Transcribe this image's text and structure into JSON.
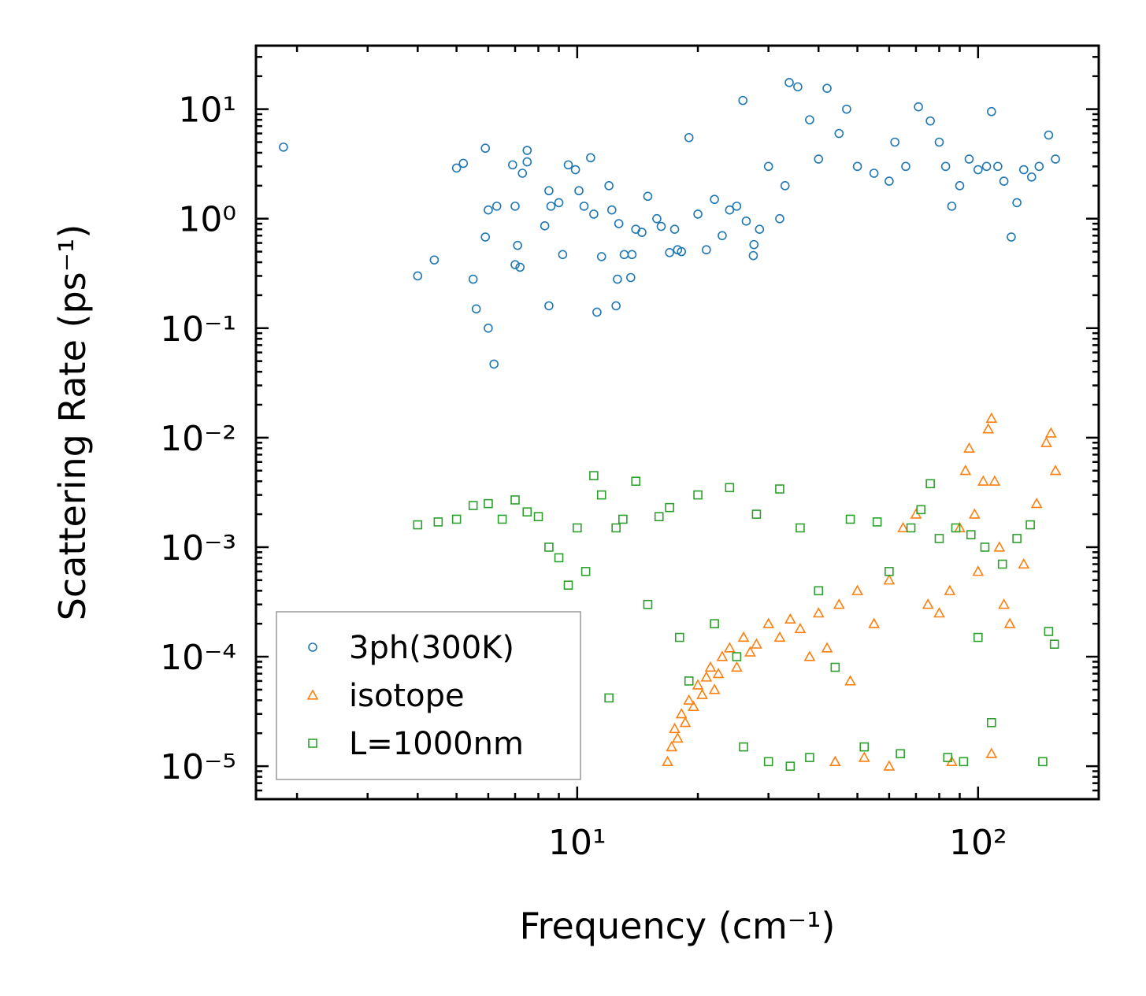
{
  "chart_data": {
    "type": "scatter",
    "title": "",
    "xlabel": "Frequency (cm⁻¹)",
    "ylabel": "Scattering Rate (ps⁻¹)",
    "xscale": "log",
    "yscale": "log",
    "xlim": [
      1.58,
      200
    ],
    "ylim": [
      5e-06,
      38
    ],
    "x_tick_labels": [
      {
        "value": 10,
        "label": "10¹"
      },
      {
        "value": 100,
        "label": "10²"
      }
    ],
    "y_tick_labels": [
      {
        "value": 10,
        "label": "10¹"
      },
      {
        "value": 1,
        "label": "10⁰"
      },
      {
        "value": 0.1,
        "label": "10⁻¹"
      },
      {
        "value": 0.01,
        "label": "10⁻²"
      },
      {
        "value": 0.001,
        "label": "10⁻³"
      },
      {
        "value": 0.0001,
        "label": "10⁻⁴"
      },
      {
        "value": 1e-05,
        "label": "10⁻⁵"
      }
    ],
    "legend_position": "lower-left",
    "series": [
      {
        "name": "3ph(300K)",
        "marker": "circle",
        "color": "#1f77b4",
        "points": [
          [
            1.85,
            4.5
          ],
          [
            4.0,
            0.3
          ],
          [
            4.4,
            0.42
          ],
          [
            5.0,
            2.9
          ],
          [
            5.2,
            3.2
          ],
          [
            5.5,
            0.28
          ],
          [
            5.6,
            0.15
          ],
          [
            5.9,
            0.68
          ],
          [
            5.9,
            4.4
          ],
          [
            6.0,
            0.1
          ],
          [
            6.0,
            1.2
          ],
          [
            6.2,
            0.047
          ],
          [
            6.3,
            1.3
          ],
          [
            6.9,
            3.1
          ],
          [
            7.0,
            1.3
          ],
          [
            7.0,
            0.38
          ],
          [
            7.1,
            0.57
          ],
          [
            7.2,
            0.36
          ],
          [
            7.3,
            2.6
          ],
          [
            7.5,
            4.2
          ],
          [
            7.5,
            3.3
          ],
          [
            8.3,
            0.86
          ],
          [
            8.5,
            0.16
          ],
          [
            8.5,
            1.8
          ],
          [
            8.6,
            1.3
          ],
          [
            9.0,
            1.4
          ],
          [
            9.2,
            0.47
          ],
          [
            9.5,
            3.1
          ],
          [
            9.9,
            2.8
          ],
          [
            10.1,
            1.8
          ],
          [
            10.4,
            1.3
          ],
          [
            10.8,
            3.6
          ],
          [
            11.0,
            1.1
          ],
          [
            11.2,
            0.14
          ],
          [
            11.5,
            0.45
          ],
          [
            12.0,
            2.0
          ],
          [
            12.2,
            1.2
          ],
          [
            12.5,
            0.16
          ],
          [
            12.6,
            0.28
          ],
          [
            12.7,
            0.9
          ],
          [
            13.1,
            0.47
          ],
          [
            13.6,
            0.29
          ],
          [
            13.7,
            0.47
          ],
          [
            14.0,
            0.8
          ],
          [
            14.5,
            0.75
          ],
          [
            15.0,
            1.6
          ],
          [
            15.8,
            1.0
          ],
          [
            16.2,
            0.85
          ],
          [
            17.0,
            0.49
          ],
          [
            17.5,
            0.8
          ],
          [
            17.8,
            0.52
          ],
          [
            18.2,
            0.5
          ],
          [
            19.0,
            5.5
          ],
          [
            20.0,
            1.1
          ],
          [
            21.0,
            0.52
          ],
          [
            22.0,
            1.5
          ],
          [
            23.0,
            0.7
          ],
          [
            24.0,
            1.2
          ],
          [
            25.0,
            1.3
          ],
          [
            25.9,
            12.0
          ],
          [
            26.4,
            0.95
          ],
          [
            27.5,
            0.46
          ],
          [
            27.6,
            0.58
          ],
          [
            28.5,
            0.8
          ],
          [
            30.0,
            3.0
          ],
          [
            32.0,
            1.0
          ],
          [
            33.0,
            2.0
          ],
          [
            33.8,
            17.5
          ],
          [
            35.5,
            16.0
          ],
          [
            38.0,
            8.0
          ],
          [
            40.0,
            3.5
          ],
          [
            42.0,
            15.5
          ],
          [
            45.0,
            6.0
          ],
          [
            47.0,
            10.0
          ],
          [
            50.0,
            3.0
          ],
          [
            55.0,
            2.6
          ],
          [
            60.0,
            2.2
          ],
          [
            62.0,
            5.0
          ],
          [
            66.0,
            3.0
          ],
          [
            71.0,
            10.5
          ],
          [
            76.0,
            7.8
          ],
          [
            80.0,
            5.0
          ],
          [
            83.0,
            3.0
          ],
          [
            86.0,
            1.3
          ],
          [
            90.0,
            2.0
          ],
          [
            95.0,
            3.5
          ],
          [
            100.0,
            2.8
          ],
          [
            105.0,
            3.0
          ],
          [
            108.0,
            9.5
          ],
          [
            112.0,
            3.0
          ],
          [
            116.0,
            2.2
          ],
          [
            121.0,
            0.68
          ],
          [
            125.0,
            1.4
          ],
          [
            130.0,
            2.8
          ],
          [
            136.0,
            2.4
          ],
          [
            142.0,
            3.0
          ],
          [
            150.0,
            5.8
          ],
          [
            156.0,
            3.5
          ]
        ]
      },
      {
        "name": "isotope",
        "marker": "triangle",
        "color": "#ff7f0e",
        "points": [
          [
            16.8,
            1.1e-05
          ],
          [
            17.2,
            1.5e-05
          ],
          [
            17.5,
            2.2e-05
          ],
          [
            17.8,
            1.8e-05
          ],
          [
            18.2,
            3e-05
          ],
          [
            18.6,
            2.5e-05
          ],
          [
            19.0,
            4e-05
          ],
          [
            19.5,
            3.5e-05
          ],
          [
            20.0,
            5.5e-05
          ],
          [
            20.5,
            4.5e-05
          ],
          [
            21.0,
            6.5e-05
          ],
          [
            21.5,
            8e-05
          ],
          [
            22.0,
            5e-05
          ],
          [
            22.5,
            7e-05
          ],
          [
            23.0,
            0.0001
          ],
          [
            24.0,
            0.00012
          ],
          [
            25.0,
            8e-05
          ],
          [
            26.0,
            0.00015
          ],
          [
            27.0,
            0.00011
          ],
          [
            28.0,
            0.00013
          ],
          [
            30.0,
            0.0002
          ],
          [
            32.0,
            0.00015
          ],
          [
            34.0,
            0.00022
          ],
          [
            36.0,
            0.00018
          ],
          [
            38.0,
            0.0001
          ],
          [
            40.0,
            0.00025
          ],
          [
            42.0,
            0.00012
          ],
          [
            45.0,
            0.0003
          ],
          [
            48.0,
            6e-05
          ],
          [
            50.0,
            0.0004
          ],
          [
            55.0,
            0.0002
          ],
          [
            60.0,
            0.0005
          ],
          [
            65.0,
            0.0015
          ],
          [
            70.0,
            0.002
          ],
          [
            75.0,
            0.0003
          ],
          [
            80.0,
            0.00025
          ],
          [
            85.0,
            0.0004
          ],
          [
            90.0,
            0.0015
          ],
          [
            93.0,
            0.005
          ],
          [
            95.0,
            0.008
          ],
          [
            98.0,
            0.002
          ],
          [
            100.0,
            0.0006
          ],
          [
            103.0,
            0.004
          ],
          [
            106.0,
            0.012
          ],
          [
            108.0,
            0.015
          ],
          [
            110.0,
            0.004
          ],
          [
            113.0,
            0.001
          ],
          [
            116.0,
            0.0003
          ],
          [
            120.0,
            0.0002
          ],
          [
            130.0,
            0.0007
          ],
          [
            140.0,
            0.0025
          ],
          [
            148.0,
            0.009
          ],
          [
            152.0,
            0.011
          ],
          [
            156.0,
            0.005
          ],
          [
            44.0,
            1.1e-05
          ],
          [
            52.0,
            1.2e-05
          ],
          [
            60.0,
            1e-05
          ],
          [
            86.0,
            1.1e-05
          ],
          [
            108.0,
            1.3e-05
          ]
        ]
      },
      {
        "name": "L=1000nm",
        "marker": "square",
        "color": "#2ca02c",
        "points": [
          [
            4.0,
            0.0016
          ],
          [
            4.5,
            0.0017
          ],
          [
            5.0,
            0.0018
          ],
          [
            5.5,
            0.0024
          ],
          [
            6.0,
            0.0025
          ],
          [
            6.5,
            0.0018
          ],
          [
            7.0,
            0.0027
          ],
          [
            7.5,
            0.0021
          ],
          [
            8.0,
            0.0019
          ],
          [
            8.5,
            0.001
          ],
          [
            9.0,
            0.0008
          ],
          [
            9.5,
            0.00045
          ],
          [
            10.0,
            0.0015
          ],
          [
            10.5,
            0.0006
          ],
          [
            11.0,
            0.0045
          ],
          [
            11.5,
            0.003
          ],
          [
            12.0,
            4.2e-05
          ],
          [
            12.5,
            0.0015
          ],
          [
            13.0,
            0.0018
          ],
          [
            14.0,
            0.004
          ],
          [
            15.0,
            0.0003
          ],
          [
            16.0,
            0.0019
          ],
          [
            17.0,
            0.0023
          ],
          [
            18.0,
            0.00015
          ],
          [
            19.0,
            6e-05
          ],
          [
            20.0,
            0.003
          ],
          [
            22.0,
            0.0002
          ],
          [
            24.0,
            0.0035
          ],
          [
            25.0,
            0.0001
          ],
          [
            26.0,
            1.5e-05
          ],
          [
            28.0,
            0.002
          ],
          [
            30.0,
            1.1e-05
          ],
          [
            32.0,
            0.0034
          ],
          [
            34.0,
            1e-05
          ],
          [
            36.0,
            0.0015
          ],
          [
            38.0,
            1.2e-05
          ],
          [
            40.0,
            0.0004
          ],
          [
            44.0,
            8e-05
          ],
          [
            48.0,
            0.0018
          ],
          [
            52.0,
            1.5e-05
          ],
          [
            56.0,
            0.0017
          ],
          [
            60.0,
            0.0006
          ],
          [
            64.0,
            1.3e-05
          ],
          [
            68.0,
            0.0015
          ],
          [
            72.0,
            0.0022
          ],
          [
            76.0,
            0.0038
          ],
          [
            80.0,
            0.0012
          ],
          [
            84.0,
            1.2e-05
          ],
          [
            88.0,
            0.0015
          ],
          [
            92.0,
            1.1e-05
          ],
          [
            96.0,
            0.0013
          ],
          [
            100.0,
            0.00015
          ],
          [
            104.0,
            0.001
          ],
          [
            108.0,
            2.5e-05
          ],
          [
            115.0,
            0.0007
          ],
          [
            125.0,
            0.0012
          ],
          [
            135.0,
            0.0016
          ],
          [
            145.0,
            1.1e-05
          ],
          [
            150.0,
            0.00017
          ],
          [
            155.0,
            0.00013
          ]
        ]
      }
    ]
  }
}
